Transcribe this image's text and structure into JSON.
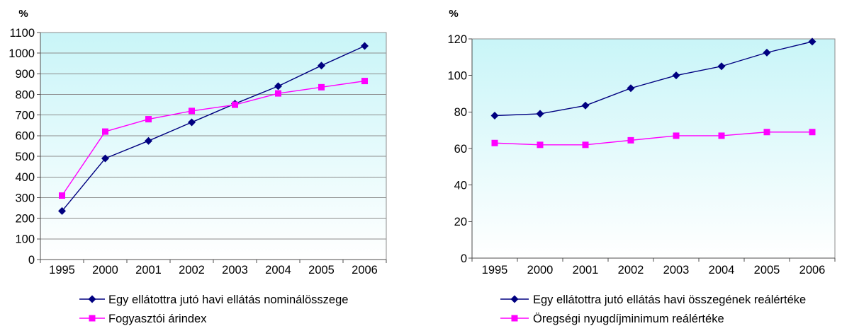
{
  "chart_data": [
    {
      "type": "line",
      "ylabel": "%",
      "categories": [
        "1995",
        "2000",
        "2001",
        "2002",
        "2003",
        "2004",
        "2005",
        "2006"
      ],
      "ylim": [
        0,
        1100
      ],
      "yticks": [
        0,
        100,
        200,
        300,
        400,
        500,
        600,
        700,
        800,
        900,
        1000,
        1100
      ],
      "grid": true,
      "legend": "bottom",
      "plot_gradient": {
        "top": "#c9f5f8",
        "bottom": "#ffffff"
      },
      "series": [
        {
          "name": "Egy ellátottra jutó havi ellátás nominálösszege",
          "values": [
            235,
            490,
            575,
            665,
            755,
            840,
            940,
            1035
          ],
          "color": "#000080",
          "marker": "diamond"
        },
        {
          "name": "Fogyasztói árindex",
          "values": [
            310,
            620,
            680,
            720,
            750,
            805,
            835,
            865
          ],
          "color": "#ff00ff",
          "marker": "square"
        }
      ]
    },
    {
      "type": "line",
      "ylabel": "%",
      "categories": [
        "1995",
        "2000",
        "2001",
        "2002",
        "2003",
        "2004",
        "2005",
        "2006"
      ],
      "ylim": [
        0,
        120
      ],
      "yticks": [
        0,
        20,
        40,
        60,
        80,
        100,
        120
      ],
      "grid": false,
      "legend": "bottom",
      "plot_gradient": {
        "top": "#c9f5f8",
        "bottom": "#ffffff"
      },
      "series": [
        {
          "name": "Egy ellátottra jutó ellátás havi összegének reálértéke",
          "values": [
            78,
            79,
            83.5,
            93,
            100,
            105,
            112.5,
            118.5
          ],
          "color": "#000080",
          "marker": "diamond"
        },
        {
          "name": "Öregségi nyugdíjminimum reálértéke",
          "values": [
            63,
            62,
            62,
            64.5,
            67,
            67,
            69,
            69
          ],
          "color": "#ff00ff",
          "marker": "square"
        }
      ]
    }
  ]
}
